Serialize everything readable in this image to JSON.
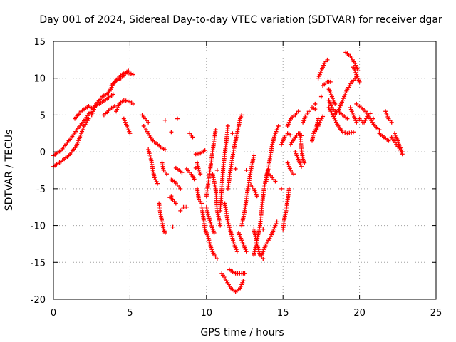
{
  "chart_data": {
    "type": "scatter",
    "title": "Day 001 of 2024, Sidereal Day-to-day VTEC variation (SDTVAR) for receiver dgar",
    "xlabel": "GPS time / hours",
    "ylabel": "SDTVAR / TECUs",
    "xlim": [
      0,
      25
    ],
    "ylim": [
      -20,
      15
    ],
    "xticks": [
      0,
      5,
      10,
      15,
      20,
      25
    ],
    "yticks": [
      -20,
      -15,
      -10,
      -5,
      0,
      5,
      10,
      15
    ],
    "grid": true,
    "legend": "none",
    "marker": "plus",
    "color": "#ff0000",
    "tracks": [
      [
        [
          0.0,
          -2.0
        ],
        [
          0.5,
          -1.3
        ],
        [
          1.0,
          -0.5
        ],
        [
          1.5,
          0.8
        ],
        [
          2.0,
          3.5
        ],
        [
          2.3,
          4.5
        ]
      ],
      [
        [
          0.0,
          -0.5
        ],
        [
          0.5,
          0.2
        ],
        [
          1.0,
          1.5
        ],
        [
          1.3,
          2.3
        ],
        [
          1.6,
          3.2
        ],
        [
          2.0,
          4.2
        ],
        [
          2.4,
          5.4
        ]
      ],
      [
        [
          1.4,
          4.5
        ],
        [
          1.8,
          5.5
        ],
        [
          2.3,
          6.2
        ],
        [
          2.6,
          5.8
        ]
      ],
      [
        [
          2.5,
          5.0
        ],
        [
          2.8,
          6.5
        ],
        [
          3.2,
          7.5
        ],
        [
          3.6,
          8.0
        ],
        [
          4.0,
          9.5
        ],
        [
          4.4,
          10.0
        ],
        [
          4.8,
          10.8
        ],
        [
          5.2,
          10.5
        ]
      ],
      [
        [
          2.6,
          6.0
        ],
        [
          3.0,
          6.5
        ],
        [
          3.5,
          7.2
        ],
        [
          3.9,
          7.8
        ]
      ],
      [
        [
          3.3,
          5.0
        ],
        [
          3.7,
          5.8
        ],
        [
          4.0,
          6.2
        ]
      ],
      [
        [
          4.1,
          5.5
        ],
        [
          4.3,
          6.5
        ],
        [
          4.6,
          7.0
        ],
        [
          5.0,
          6.8
        ],
        [
          5.2,
          6.5
        ]
      ],
      [
        [
          3.8,
          9.0
        ],
        [
          4.2,
          10.0
        ],
        [
          4.5,
          10.5
        ],
        [
          4.9,
          11.0
        ]
      ],
      [
        [
          4.6,
          4.5
        ],
        [
          4.8,
          3.5
        ],
        [
          5.0,
          2.5
        ]
      ],
      [
        [
          5.8,
          5.0
        ],
        [
          6.0,
          4.5
        ],
        [
          6.2,
          4.0
        ]
      ],
      [
        [
          5.9,
          3.5
        ],
        [
          6.2,
          2.5
        ],
        [
          6.5,
          1.5
        ],
        [
          6.8,
          1.0
        ],
        [
          7.1,
          0.5
        ],
        [
          7.3,
          0.3
        ]
      ],
      [
        [
          6.2,
          0.3
        ],
        [
          6.4,
          -1.2
        ],
        [
          6.5,
          -2.5
        ],
        [
          6.6,
          -3.5
        ],
        [
          6.8,
          -4.3
        ]
      ],
      [
        [
          7.1,
          -1.5
        ],
        [
          7.2,
          -2.5
        ],
        [
          7.4,
          -3.0
        ]
      ],
      [
        [
          6.9,
          -7.0
        ],
        [
          7.0,
          -8.5
        ],
        [
          7.1,
          -9.5
        ],
        [
          7.2,
          -10.5
        ],
        [
          7.3,
          -11.0
        ]
      ],
      [
        [
          7.6,
          -6.2
        ],
        [
          7.8,
          -6.5
        ],
        [
          8.0,
          -7.0
        ]
      ],
      [
        [
          8.0,
          -2.2
        ],
        [
          8.2,
          -2.5
        ],
        [
          8.4,
          -2.8
        ]
      ],
      [
        [
          7.7,
          -3.8
        ],
        [
          7.9,
          -4.0
        ],
        [
          8.1,
          -4.5
        ],
        [
          8.3,
          -5.0
        ]
      ],
      [
        [
          8.3,
          -8.0
        ],
        [
          8.5,
          -7.5
        ],
        [
          8.7,
          -7.5
        ]
      ],
      [
        [
          8.7,
          -2.3
        ],
        [
          8.9,
          -2.8
        ],
        [
          9.1,
          -3.3
        ],
        [
          9.2,
          -3.7
        ]
      ],
      [
        [
          8.9,
          2.5
        ],
        [
          9.1,
          2.0
        ]
      ],
      [
        [
          9.3,
          -0.3
        ],
        [
          9.6,
          -0.2
        ],
        [
          9.9,
          0.2
        ]
      ],
      [
        [
          9.4,
          -1.5
        ],
        [
          9.5,
          -2.5
        ],
        [
          9.6,
          -3.0
        ]
      ],
      [
        [
          9.4,
          -5.0
        ],
        [
          9.5,
          -6.5
        ],
        [
          9.7,
          -7.0
        ]
      ],
      [
        [
          9.7,
          -7.5
        ],
        [
          9.8,
          -9.0
        ],
        [
          9.9,
          -10.5
        ],
        [
          10.1,
          -11.5
        ],
        [
          10.3,
          -13.0
        ],
        [
          10.5,
          -14.0
        ],
        [
          10.7,
          -14.5
        ]
      ],
      [
        [
          10.0,
          -7.5
        ],
        [
          10.1,
          -8.5
        ],
        [
          10.3,
          -9.8
        ],
        [
          10.5,
          -11.0
        ]
      ],
      [
        [
          10.0,
          -6.0
        ],
        [
          10.2,
          -3.0
        ],
        [
          10.4,
          0.0
        ],
        [
          10.6,
          3.0
        ]
      ],
      [
        [
          10.4,
          -3.0
        ],
        [
          10.6,
          -5.0
        ],
        [
          10.7,
          -8.0
        ],
        [
          10.9,
          -10.0
        ]
      ],
      [
        [
          10.9,
          -8.0
        ],
        [
          11.0,
          -5.0
        ],
        [
          11.1,
          -2.0
        ],
        [
          11.3,
          1.5
        ],
        [
          11.4,
          3.5
        ]
      ],
      [
        [
          11.2,
          -7.0
        ],
        [
          11.4,
          -9.5
        ],
        [
          11.6,
          -11.0
        ],
        [
          11.8,
          -12.5
        ],
        [
          12.0,
          -13.5
        ]
      ],
      [
        [
          11.4,
          -5.0
        ],
        [
          11.6,
          -2.0
        ],
        [
          11.8,
          0.5
        ],
        [
          12.0,
          2.5
        ],
        [
          12.2,
          4.5
        ],
        [
          12.3,
          5.0
        ]
      ],
      [
        [
          11.0,
          -16.5
        ],
        [
          11.3,
          -17.5
        ],
        [
          11.6,
          -18.5
        ],
        [
          11.9,
          -19.0
        ],
        [
          12.2,
          -18.5
        ],
        [
          12.4,
          -17.5
        ]
      ],
      [
        [
          11.5,
          -16.0
        ],
        [
          11.9,
          -16.5
        ],
        [
          12.3,
          -16.5
        ],
        [
          12.5,
          -16.5
        ]
      ],
      [
        [
          12.3,
          -10.0
        ],
        [
          12.5,
          -8.0
        ],
        [
          12.7,
          -5.0
        ],
        [
          12.9,
          -2.5
        ],
        [
          13.1,
          -0.5
        ]
      ],
      [
        [
          12.1,
          -11.0
        ],
        [
          12.3,
          -12.0
        ],
        [
          12.5,
          -13.0
        ],
        [
          12.6,
          -13.5
        ]
      ],
      [
        [
          12.9,
          -4.5
        ],
        [
          13.1,
          -5.0
        ],
        [
          13.3,
          -6.0
        ]
      ],
      [
        [
          13.1,
          -14.0
        ],
        [
          13.3,
          -12.0
        ],
        [
          13.5,
          -10.0
        ],
        [
          13.6,
          -8.0
        ],
        [
          13.7,
          -6.0
        ],
        [
          13.8,
          -4.5
        ],
        [
          14.0,
          -2.5
        ]
      ],
      [
        [
          13.1,
          -10.5
        ],
        [
          13.3,
          -12.5
        ],
        [
          13.5,
          -14.0
        ],
        [
          13.7,
          -14.5
        ]
      ],
      [
        [
          13.6,
          -14.0
        ],
        [
          13.9,
          -12.5
        ],
        [
          14.2,
          -11.5
        ],
        [
          14.4,
          -10.5
        ],
        [
          14.6,
          -9.5
        ]
      ],
      [
        [
          13.9,
          -4.0
        ],
        [
          14.1,
          -1.5
        ],
        [
          14.3,
          1.0
        ],
        [
          14.5,
          2.5
        ],
        [
          14.7,
          3.5
        ]
      ],
      [
        [
          14.1,
          -3.0
        ],
        [
          14.3,
          -3.5
        ],
        [
          14.5,
          -4.0
        ]
      ],
      [
        [
          15.0,
          -10.5
        ],
        [
          15.1,
          -9.0
        ],
        [
          15.2,
          -8.0
        ],
        [
          15.3,
          -6.5
        ],
        [
          15.4,
          -5.0
        ]
      ],
      [
        [
          14.9,
          1.0
        ],
        [
          15.1,
          2.0
        ],
        [
          15.3,
          2.5
        ],
        [
          15.5,
          2.3
        ]
      ],
      [
        [
          15.3,
          -1.5
        ],
        [
          15.5,
          -2.5
        ],
        [
          15.7,
          -3.0
        ]
      ],
      [
        [
          15.5,
          1.0
        ],
        [
          15.8,
          2.0
        ],
        [
          16.0,
          2.5
        ],
        [
          16.2,
          2.2
        ]
      ],
      [
        [
          15.8,
          0.0
        ],
        [
          16.0,
          -1.0
        ],
        [
          16.2,
          -2.0
        ]
      ],
      [
        [
          16.1,
          2.5
        ],
        [
          16.2,
          0.5
        ],
        [
          16.3,
          -1.0
        ],
        [
          16.4,
          -1.5
        ]
      ],
      [
        [
          15.3,
          3.5
        ],
        [
          15.5,
          4.5
        ],
        [
          15.8,
          5.0
        ],
        [
          16.0,
          5.5
        ]
      ],
      [
        [
          16.3,
          4.0
        ],
        [
          16.5,
          5.0
        ],
        [
          16.7,
          5.5
        ]
      ],
      [
        [
          16.9,
          1.5
        ],
        [
          17.0,
          2.5
        ],
        [
          17.2,
          3.5
        ],
        [
          17.3,
          4.5
        ]
      ],
      [
        [
          16.9,
          6.0
        ],
        [
          17.1,
          5.8
        ]
      ],
      [
        [
          17.2,
          3.0
        ],
        [
          17.4,
          4.0
        ],
        [
          17.6,
          4.8
        ]
      ],
      [
        [
          17.3,
          10.0
        ],
        [
          17.5,
          11.0
        ],
        [
          17.7,
          12.0
        ],
        [
          17.9,
          12.5
        ]
      ],
      [
        [
          17.6,
          9.0
        ],
        [
          17.9,
          9.5
        ],
        [
          18.1,
          9.5
        ]
      ],
      [
        [
          18.0,
          8.5
        ],
        [
          18.2,
          7.5
        ],
        [
          18.4,
          6.5
        ]
      ],
      [
        [
          18.0,
          7.0
        ],
        [
          18.2,
          6.0
        ],
        [
          18.4,
          5.5
        ]
      ],
      [
        [
          18.0,
          6.0
        ],
        [
          18.3,
          4.8
        ],
        [
          18.6,
          3.5
        ],
        [
          18.9,
          2.7
        ],
        [
          19.2,
          2.5
        ],
        [
          19.6,
          2.7
        ]
      ],
      [
        [
          18.6,
          5.5
        ],
        [
          18.8,
          6.5
        ],
        [
          19.0,
          7.5
        ],
        [
          19.2,
          8.5
        ],
        [
          19.5,
          9.5
        ],
        [
          19.8,
          10.2
        ]
      ],
      [
        [
          18.3,
          5.0
        ],
        [
          18.6,
          5.5
        ],
        [
          18.9,
          5.0
        ],
        [
          19.2,
          4.5
        ]
      ],
      [
        [
          19.6,
          11.5
        ],
        [
          19.8,
          10.5
        ],
        [
          20.0,
          9.5
        ]
      ],
      [
        [
          19.1,
          13.5
        ],
        [
          19.4,
          13.0
        ],
        [
          19.7,
          12.0
        ],
        [
          19.9,
          11.0
        ]
      ],
      [
        [
          19.4,
          6.0
        ],
        [
          19.6,
          5.0
        ],
        [
          19.8,
          4.0
        ],
        [
          20.0,
          4.5
        ],
        [
          20.2,
          4.0
        ]
      ],
      [
        [
          19.8,
          6.5
        ],
        [
          20.1,
          6.0
        ],
        [
          20.4,
          5.5
        ],
        [
          20.7,
          4.5
        ],
        [
          21.0,
          3.5
        ],
        [
          21.3,
          3.0
        ]
      ],
      [
        [
          20.3,
          4.0
        ],
        [
          20.5,
          4.8
        ],
        [
          20.7,
          5.2
        ]
      ],
      [
        [
          21.7,
          5.5
        ],
        [
          21.9,
          4.5
        ],
        [
          22.1,
          4.0
        ]
      ],
      [
        [
          21.3,
          2.5
        ],
        [
          21.6,
          2.0
        ],
        [
          21.9,
          1.5
        ]
      ],
      [
        [
          22.3,
          2.5
        ],
        [
          22.5,
          1.5
        ],
        [
          22.6,
          0.8
        ],
        [
          22.8,
          0.0
        ]
      ],
      [
        [
          22.1,
          2.0
        ],
        [
          22.4,
          1.0
        ],
        [
          22.6,
          0.5
        ],
        [
          22.8,
          -0.3
        ]
      ]
    ],
    "isolated_points": [
      [
        7.3,
        4.3
      ],
      [
        7.7,
        -6.0
      ],
      [
        7.8,
        -10.2
      ],
      [
        7.7,
        2.7
      ],
      [
        8.1,
        4.5
      ],
      [
        9.3,
        -2.2
      ],
      [
        10.7,
        -2.5
      ],
      [
        11.7,
        2.5
      ],
      [
        11.9,
        -2.3
      ],
      [
        12.6,
        -2.5
      ],
      [
        13.7,
        -10.5
      ],
      [
        14.9,
        -5.0
      ],
      [
        15.3,
        -6.5
      ],
      [
        16.4,
        4.3
      ],
      [
        17.5,
        7.5
      ],
      [
        17.1,
        6.5
      ],
      [
        20.9,
        4.5
      ],
      [
        21.3,
        2.5
      ]
    ]
  }
}
